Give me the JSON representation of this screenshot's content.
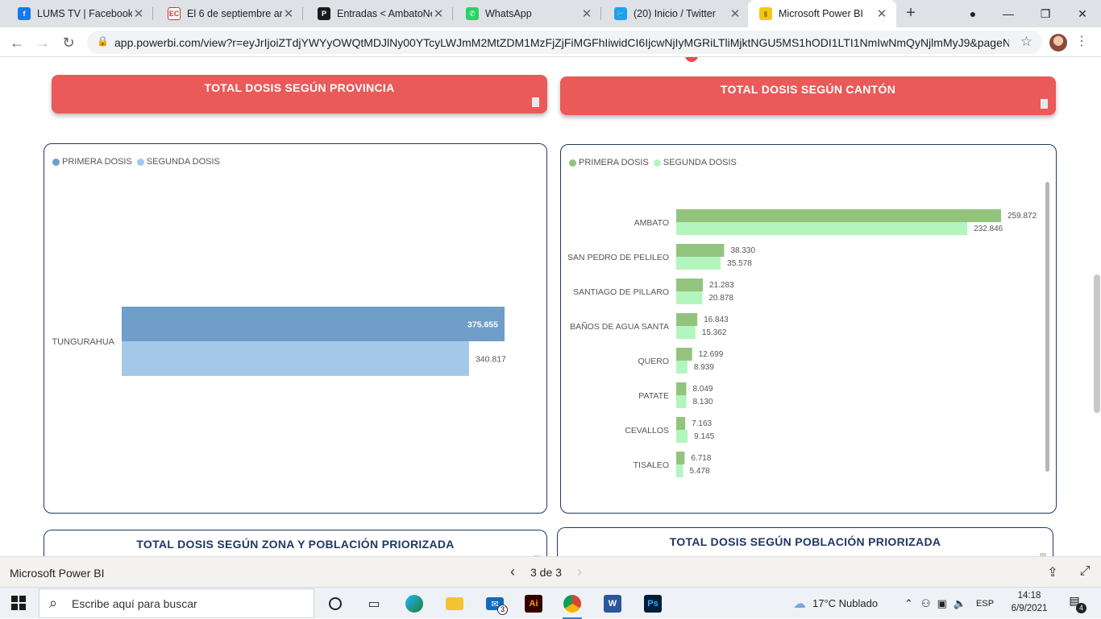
{
  "browser": {
    "tabs": [
      {
        "title": "LUMS TV | Facebook",
        "icon": "facebook-icon",
        "color": "#1877f2",
        "glyph": "f"
      },
      {
        "title": "El 6 de septiembre arr",
        "icon": "el-comercio-icon",
        "color": "#ffffff",
        "glyph": "EC"
      },
      {
        "title": "Entradas < AmbatoNe",
        "icon": "wordpress-edit-icon",
        "color": "#1a1a1a",
        "glyph": "P"
      },
      {
        "title": "WhatsApp",
        "icon": "whatsapp-icon",
        "color": "#25d366",
        "glyph": "✆"
      },
      {
        "title": "(20) Inicio / Twitter",
        "icon": "twitter-icon",
        "color": "#1da1f2",
        "glyph": "🐦"
      },
      {
        "title": "Microsoft Power BI",
        "icon": "power-bi-icon",
        "color": "#f2c811",
        "glyph": "▮"
      }
    ],
    "new_tab": "+",
    "url": "app.powerbi.com/view?r=eyJrIjoiZTdjYWYyOWQtMDJlNy00YTcyLWJmM2MtZDM1MzFjZjFiMGFhIiwidCI6IjcwNjIyMGRiLTliMjktNGU5MS1hODI1LTI1NmIwNmQyNjlmMyJ9&pageNa..."
  },
  "report": {
    "header_provincia": "TOTAL DOSIS SEGÚN PROVINCIA",
    "header_canton": "TOTAL DOSIS SEGÚN CANTÓN",
    "bottom_left_title": "TOTAL DOSIS SEGÚN ZONA Y POBLACIÓN PRIORIZADA",
    "bottom_right_title": "TOTAL DOSIS SEGÚN POBLACIÓN PRIORIZADA"
  },
  "chart_data": [
    {
      "type": "bar",
      "orientation": "horizontal",
      "categories": [
        "TUNGURAHUA"
      ],
      "series": [
        {
          "name": "PRIMERA DOSIS",
          "values": [
            375655
          ],
          "labels": [
            "375.655"
          ],
          "color": "#6f9ec8"
        },
        {
          "name": "SEGUNDA DOSIS",
          "values": [
            340817
          ],
          "labels": [
            "340.817"
          ],
          "color": "#a4c9e8"
        }
      ],
      "xlim": [
        0,
        375655
      ],
      "legend": "top-left"
    },
    {
      "type": "bar",
      "orientation": "horizontal",
      "categories": [
        "AMBATO",
        "SAN PEDRO DE PELILEO",
        "SANTIAGO DE PILLARO",
        "BAÑOS DE AGUA SANTA",
        "QUERO",
        "PATATE",
        "CEVALLOS",
        "TISALEO"
      ],
      "series": [
        {
          "name": "PRIMERA DOSIS",
          "values": [
            259872,
            38330,
            21283,
            16843,
            12699,
            8049,
            7163,
            6718
          ],
          "labels": [
            "259.872",
            "38.330",
            "21.283",
            "16.843",
            "12.699",
            "8.049",
            "7.163",
            "6.718"
          ],
          "color": "#93c47d"
        },
        {
          "name": "SEGUNDA DOSIS",
          "values": [
            232846,
            35578,
            20878,
            15362,
            8939,
            8130,
            9145,
            5478
          ],
          "labels": [
            "232.846",
            "35.578",
            "20.878",
            "15.362",
            "8.939",
            "8.130",
            "9.145",
            "5.478"
          ],
          "color": "#b3f5bf"
        }
      ],
      "xlim": [
        0,
        259872
      ],
      "legend": "top-left"
    }
  ],
  "pbi_footer": {
    "brand": "Microsoft Power BI",
    "page_indicator": "3 de 3",
    "prev": "‹",
    "next": "›"
  },
  "taskbar": {
    "search_placeholder": "Escribe aquí para buscar",
    "mail_badge": "3",
    "weather": "17°C  Nublado",
    "language": "ESP",
    "time": "14:18",
    "date": "6/9/2021",
    "notifications": "4"
  }
}
